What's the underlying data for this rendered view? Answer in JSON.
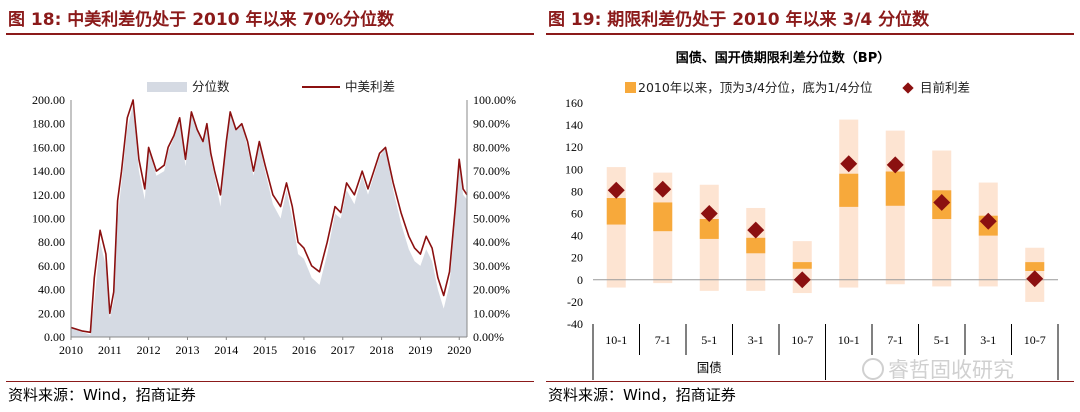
{
  "left": {
    "title": "图 18:  中美利差仍处于 2010 年以来 70%分位数",
    "source": "资料来源：Wind，招商证券",
    "legend": {
      "area": "分位数",
      "line": "中美利差"
    },
    "colors": {
      "area": "#d5dae3",
      "line": "#8b1010"
    }
  },
  "right": {
    "title": "图 19:  期限利差仍处于 2010 年以来 3/4 分位数",
    "source": "资料来源：Wind，招商证券",
    "watermark": "睿哲固收研究",
    "colors": {
      "bar": "#f7a93b",
      "range": "#fde4d2",
      "marker": "#8b1010"
    }
  },
  "chart_data": [
    {
      "type": "line",
      "title": "",
      "x_ticks": [
        "2010",
        "2011",
        "2012",
        "2013",
        "2014",
        "2015",
        "2016",
        "2017",
        "2018",
        "2019",
        "2020"
      ],
      "y_left_ticks": [
        "0.00",
        "20.00",
        "40.00",
        "60.00",
        "80.00",
        "100.00",
        "120.00",
        "140.00",
        "160.00",
        "180.00",
        "200.00"
      ],
      "y_right_ticks": [
        "0.00%",
        "10.00%",
        "20.00%",
        "30.00%",
        "40.00%",
        "50.00%",
        "60.00%",
        "70.00%",
        "80.00%",
        "90.00%",
        "100.00%"
      ],
      "ylim_left": [
        0,
        200
      ],
      "ylim_right": [
        0,
        100
      ],
      "xlim": [
        2010,
        2020.2
      ],
      "series": [
        {
          "name": "中美利差",
          "axis": "left",
          "x": [
            2010.0,
            2010.3,
            2010.5,
            2010.6,
            2010.75,
            2010.9,
            2011.0,
            2011.1,
            2011.2,
            2011.3,
            2011.45,
            2011.6,
            2011.75,
            2011.9,
            2012.0,
            2012.2,
            2012.4,
            2012.5,
            2012.65,
            2012.8,
            2012.95,
            2013.1,
            2013.25,
            2013.4,
            2013.5,
            2013.6,
            2013.7,
            2013.85,
            2014.0,
            2014.1,
            2014.25,
            2014.4,
            2014.55,
            2014.7,
            2014.85,
            2015.0,
            2015.2,
            2015.4,
            2015.55,
            2015.7,
            2015.85,
            2016.0,
            2016.2,
            2016.4,
            2016.6,
            2016.8,
            2016.95,
            2017.1,
            2017.3,
            2017.5,
            2017.65,
            2017.8,
            2017.95,
            2018.1,
            2018.3,
            2018.5,
            2018.7,
            2018.85,
            2019.0,
            2019.15,
            2019.3,
            2019.45,
            2019.6,
            2019.75,
            2019.9,
            2020.0,
            2020.1,
            2020.2
          ],
          "y": [
            8,
            5,
            4,
            50,
            90,
            70,
            20,
            38,
            115,
            140,
            185,
            200,
            150,
            125,
            160,
            140,
            145,
            160,
            170,
            185,
            150,
            190,
            175,
            165,
            180,
            155,
            140,
            120,
            165,
            190,
            175,
            180,
            165,
            140,
            165,
            145,
            120,
            110,
            130,
            110,
            80,
            75,
            60,
            55,
            80,
            110,
            105,
            130,
            120,
            140,
            125,
            140,
            155,
            160,
            130,
            105,
            85,
            75,
            70,
            85,
            75,
            50,
            35,
            55,
            110,
            150,
            125,
            120
          ]
        },
        {
          "name": "分位数",
          "axis": "right",
          "x": [
            2010.0,
            2010.3,
            2010.5,
            2010.6,
            2010.75,
            2010.9,
            2011.0,
            2011.1,
            2011.2,
            2011.3,
            2011.45,
            2011.6,
            2011.75,
            2011.9,
            2012.0,
            2012.2,
            2012.4,
            2012.5,
            2012.65,
            2012.8,
            2012.95,
            2013.1,
            2013.25,
            2013.4,
            2013.5,
            2013.6,
            2013.7,
            2013.85,
            2014.0,
            2014.1,
            2014.25,
            2014.4,
            2014.55,
            2014.7,
            2014.85,
            2015.0,
            2015.2,
            2015.4,
            2015.55,
            2015.7,
            2015.85,
            2016.0,
            2016.2,
            2016.4,
            2016.6,
            2016.8,
            2016.95,
            2017.1,
            2017.3,
            2017.5,
            2017.65,
            2017.8,
            2017.95,
            2018.1,
            2018.3,
            2018.5,
            2018.7,
            2018.85,
            2019.0,
            2019.15,
            2019.3,
            2019.45,
            2019.6,
            2019.75,
            2019.9,
            2020.0,
            2020.1,
            2020.2
          ],
          "y": [
            4,
            2,
            1,
            15,
            40,
            30,
            8,
            15,
            50,
            65,
            88,
            98,
            70,
            58,
            80,
            68,
            70,
            78,
            84,
            92,
            72,
            95,
            88,
            82,
            90,
            75,
            68,
            55,
            82,
            95,
            88,
            90,
            80,
            68,
            82,
            70,
            56,
            50,
            62,
            50,
            35,
            33,
            25,
            22,
            35,
            52,
            50,
            62,
            56,
            68,
            60,
            68,
            76,
            80,
            62,
            48,
            37,
            32,
            30,
            37,
            32,
            20,
            12,
            22,
            52,
            74,
            60,
            58
          ]
        }
      ],
      "legend_position": "top"
    },
    {
      "type": "bar",
      "title": "国债、国开债期限利差分位数（BP）",
      "legend": [
        "2010年以来，顶为3/4分位，底为1/4分位",
        "目前利差"
      ],
      "ylim": [
        -40,
        160
      ],
      "y_ticks": [
        "-40",
        "-20",
        "0",
        "20",
        "40",
        "60",
        "80",
        "100",
        "120",
        "140",
        "160"
      ],
      "categories": [
        "10-1",
        "7-1",
        "5-1",
        "3-1",
        "10-7",
        "10-1",
        "7-1",
        "5-1",
        "3-1",
        "10-7"
      ],
      "groups": [
        "国债"
      ],
      "range_min": [
        -7,
        -3,
        -10,
        -10,
        -12,
        -7,
        -4,
        -6,
        -6,
        -20
      ],
      "range_max": [
        102,
        97,
        86,
        65,
        35,
        145,
        135,
        117,
        88,
        29
      ],
      "q25": [
        50,
        44,
        37,
        24,
        10,
        66,
        67,
        55,
        40,
        8
      ],
      "q75": [
        74,
        70,
        55,
        38,
        16,
        96,
        98,
        81,
        58,
        16
      ],
      "current": [
        81,
        82,
        60,
        45,
        0,
        105,
        104,
        70,
        53,
        1
      ]
    }
  ]
}
